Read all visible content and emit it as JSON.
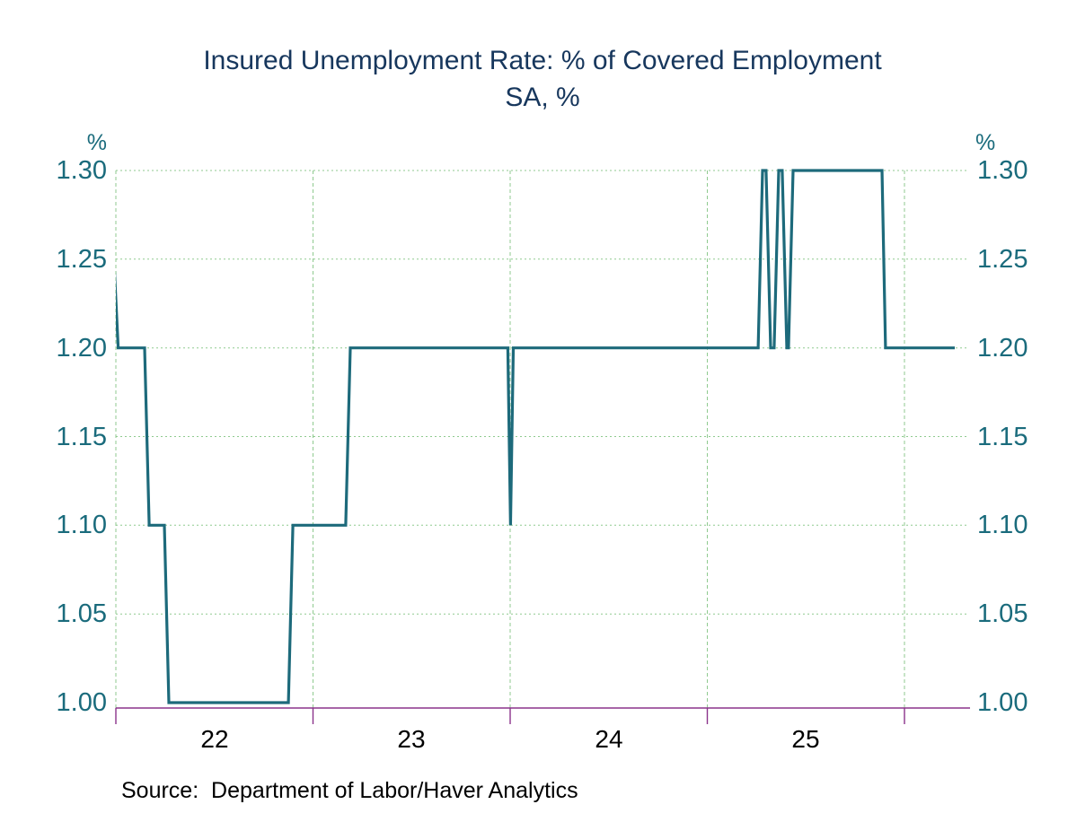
{
  "colors": {
    "title": "#17375D",
    "axis_labels": "#1A6B7C",
    "line": "#1D6A7B",
    "gridlines": "#8FCA8F",
    "x_axis": "#8B338B",
    "x_tick_labels": "#000000",
    "source_text": "#000000",
    "background": "#FFFFFF"
  },
  "chart_data": {
    "type": "line",
    "title": "Insured Unemployment Rate: % of Covered Employment",
    "subtitle": "SA, %",
    "source": "Source:  Department of Labor/Haver Analytics",
    "grid": true,
    "legend": false,
    "y_axis": {
      "unit": "%",
      "min": 1.0,
      "max": 1.3,
      "tick_step": 0.05,
      "tick_labels": [
        "1.30",
        "1.25",
        "1.20",
        "1.15",
        "1.10",
        "1.05",
        "1.00"
      ],
      "sides": [
        "left",
        "right"
      ]
    },
    "x_axis": {
      "year_ticks": [
        2022,
        2023,
        2024,
        2025,
        2026
      ],
      "tick_labels": [
        "22",
        "23",
        "24",
        "25"
      ],
      "end": 2026.33
    },
    "series": [
      {
        "name": "Insured Unemployment Rate (SA, %)",
        "color": "#1D6A7B",
        "points": [
          [
            2021.99,
            1.25
          ],
          [
            2022.012,
            1.2
          ],
          [
            2022.146,
            1.2
          ],
          [
            2022.169,
            1.1
          ],
          [
            2022.246,
            1.1
          ],
          [
            2022.269,
            1.0
          ],
          [
            2022.875,
            1.0
          ],
          [
            2022.898,
            1.1
          ],
          [
            2023.166,
            1.1
          ],
          [
            2023.189,
            1.2
          ],
          [
            2023.988,
            1.2
          ],
          [
            2024.002,
            1.1
          ],
          [
            2024.016,
            1.2
          ],
          [
            2025.258,
            1.2
          ],
          [
            2025.28,
            1.3
          ],
          [
            2025.298,
            1.3
          ],
          [
            2025.321,
            1.2
          ],
          [
            2025.339,
            1.2
          ],
          [
            2025.362,
            1.3
          ],
          [
            2025.38,
            1.3
          ],
          [
            2025.403,
            1.2
          ],
          [
            2025.412,
            1.2
          ],
          [
            2025.435,
            1.3
          ],
          [
            2025.886,
            1.3
          ],
          [
            2025.904,
            1.2
          ],
          [
            2026.255,
            1.2
          ]
        ]
      }
    ]
  }
}
